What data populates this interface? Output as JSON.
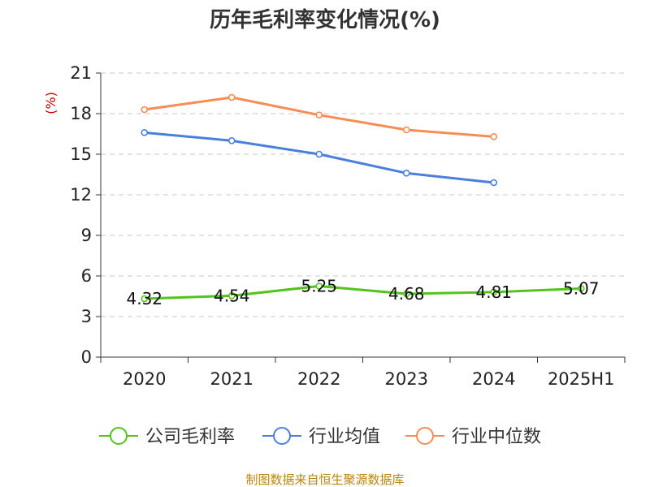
{
  "chart_data": {
    "type": "line",
    "title": "历年毛利率变化情况(%)",
    "ylabel": "(%)",
    "xlabel": "",
    "ylim": [
      0,
      21
    ],
    "yticks": [
      "0",
      "3",
      "6",
      "9",
      "12",
      "15",
      "18",
      "21"
    ],
    "categories": [
      "2020",
      "2021",
      "2022",
      "2023",
      "2024",
      "2025H1"
    ],
    "grid": true,
    "legend_position": "bottom",
    "series": [
      {
        "name": "公司毛利率",
        "color": "#52c41a",
        "values": [
          4.32,
          4.54,
          5.25,
          4.68,
          4.81,
          5.07
        ],
        "labels": [
          "4.32",
          "4.54",
          "5.25",
          "4.68",
          "4.81",
          "5.07"
        ]
      },
      {
        "name": "行业均值",
        "color": "#4a7fdc",
        "values": [
          16.6,
          16.0,
          15.0,
          13.6,
          12.9,
          null
        ]
      },
      {
        "name": "行业中位数",
        "color": "#f58d54",
        "values": [
          18.3,
          19.2,
          17.9,
          16.8,
          16.3,
          null
        ]
      }
    ]
  },
  "footer": {
    "source": "制图数据来自恒生聚源数据库"
  }
}
